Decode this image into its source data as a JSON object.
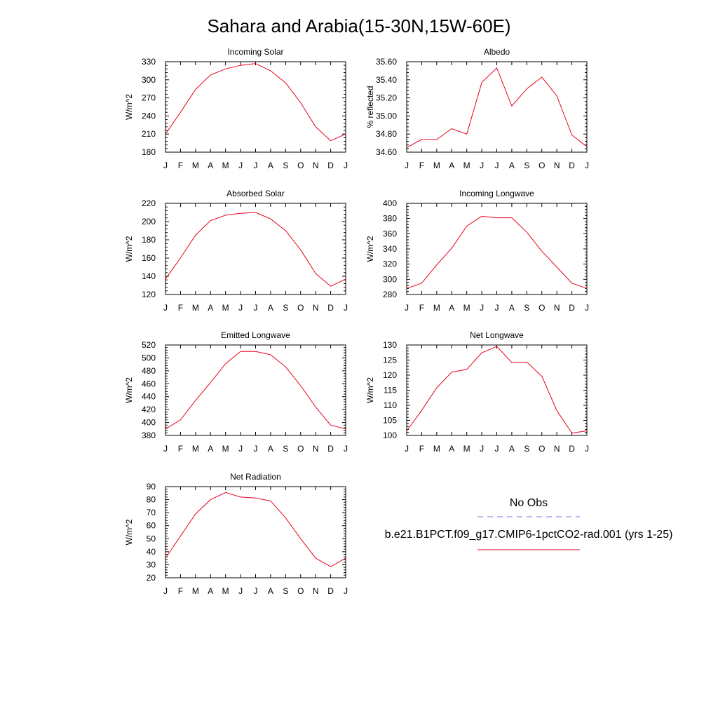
{
  "figure": {
    "title": "Sahara and Arabia(15-30N,15W-60E)"
  },
  "chart_data": [
    {
      "type": "line",
      "title": "Incoming Solar",
      "ylabel": "W/m^2",
      "xlabel": "",
      "categories": [
        "J",
        "F",
        "M",
        "A",
        "M",
        "J",
        "J",
        "A",
        "S",
        "O",
        "N",
        "D",
        "J"
      ],
      "ylim": [
        180,
        330
      ],
      "yticks": [
        "180",
        "210",
        "240",
        "270",
        "300",
        "330"
      ],
      "series": [
        {
          "color": "#e8001c",
          "values": [
            210,
            246,
            284,
            308,
            318,
            324,
            327,
            315,
            295,
            262,
            222,
            199,
            210
          ]
        }
      ]
    },
    {
      "type": "line",
      "title": "Albedo",
      "ylabel": "% reflected",
      "xlabel": "",
      "categories": [
        "J",
        "F",
        "M",
        "A",
        "M",
        "J",
        "J",
        "A",
        "S",
        "O",
        "N",
        "D",
        "J"
      ],
      "ylim": [
        34.6,
        35.6
      ],
      "yticks": [
        "34.60",
        "34.80",
        "35.00",
        "35.20",
        "35.40",
        "35.60"
      ],
      "series": [
        {
          "color": "#e8001c",
          "values": [
            34.65,
            34.74,
            34.74,
            34.86,
            34.8,
            35.37,
            35.53,
            35.11,
            35.3,
            35.43,
            35.22,
            34.79,
            34.66
          ]
        }
      ]
    },
    {
      "type": "line",
      "title": "Absorbed Solar",
      "ylabel": "W/m^2",
      "xlabel": "",
      "categories": [
        "J",
        "F",
        "M",
        "A",
        "M",
        "J",
        "J",
        "A",
        "S",
        "O",
        "N",
        "D",
        "J"
      ],
      "ylim": [
        120,
        220
      ],
      "yticks": [
        "120",
        "140",
        "160",
        "180",
        "200",
        "220"
      ],
      "series": [
        {
          "color": "#e8001c",
          "values": [
            137,
            160,
            185,
            201,
            207,
            209,
            210,
            203,
            190,
            169,
            143,
            129,
            137
          ]
        }
      ]
    },
    {
      "type": "line",
      "title": "Incoming Longwave",
      "ylabel": "W/m^2",
      "xlabel": "",
      "categories": [
        "J",
        "F",
        "M",
        "A",
        "M",
        "J",
        "J",
        "A",
        "S",
        "O",
        "N",
        "D",
        "J"
      ],
      "ylim": [
        280,
        400
      ],
      "yticks": [
        "280",
        "300",
        "320",
        "340",
        "360",
        "380",
        "400"
      ],
      "series": [
        {
          "color": "#e8001c",
          "values": [
            288,
            295,
            319,
            341,
            370,
            383,
            381,
            381,
            362,
            337,
            316,
            295,
            288
          ]
        }
      ]
    },
    {
      "type": "line",
      "title": "Emitted Longwave",
      "ylabel": "W/m^2",
      "xlabel": "",
      "categories": [
        "J",
        "F",
        "M",
        "A",
        "M",
        "J",
        "J",
        "A",
        "S",
        "O",
        "N",
        "D",
        "J"
      ],
      "ylim": [
        380,
        520
      ],
      "yticks": [
        "380",
        "400",
        "420",
        "440",
        "460",
        "480",
        "500",
        "520"
      ],
      "series": [
        {
          "color": "#e8001c",
          "values": [
            390,
            404,
            434,
            462,
            491,
            510,
            510,
            505,
            486,
            457,
            424,
            396,
            390
          ]
        }
      ]
    },
    {
      "type": "line",
      "title": "Net Longwave",
      "ylabel": "W/m^2",
      "xlabel": "",
      "categories": [
        "J",
        "F",
        "M",
        "A",
        "M",
        "J",
        "J",
        "A",
        "S",
        "O",
        "N",
        "D",
        "J"
      ],
      "ylim": [
        100,
        130
      ],
      "yticks": [
        "100",
        "105",
        "110",
        "115",
        "120",
        "125",
        "130"
      ],
      "series": [
        {
          "color": "#e8001c",
          "values": [
            101.5,
            108.3,
            115.8,
            121,
            121.9,
            127.4,
            129.5,
            124.2,
            124.3,
            119.6,
            108.2,
            100.8,
            101.5
          ]
        }
      ]
    },
    {
      "type": "line",
      "title": "Net Radiation",
      "ylabel": "W/m^2",
      "xlabel": "",
      "categories": [
        "J",
        "F",
        "M",
        "A",
        "M",
        "J",
        "J",
        "A",
        "S",
        "O",
        "N",
        "D",
        "J"
      ],
      "ylim": [
        20,
        90
      ],
      "yticks": [
        "20",
        "30",
        "40",
        "50",
        "60",
        "70",
        "80",
        "90"
      ],
      "series": [
        {
          "color": "#e8001c",
          "values": [
            35,
            52,
            69,
            80,
            85.5,
            82,
            81.3,
            79,
            66,
            50,
            35,
            28.5,
            35
          ]
        }
      ]
    }
  ],
  "legend": {
    "items": [
      {
        "label": "No Obs",
        "color": "#7a7ae6",
        "dash": true
      },
      {
        "label": "b.e21.B1PCT.f09_g17.CMIP6-1pctCO2-rad.001 (yrs 1-25)",
        "color": "#e8001c",
        "dash": false
      }
    ]
  }
}
